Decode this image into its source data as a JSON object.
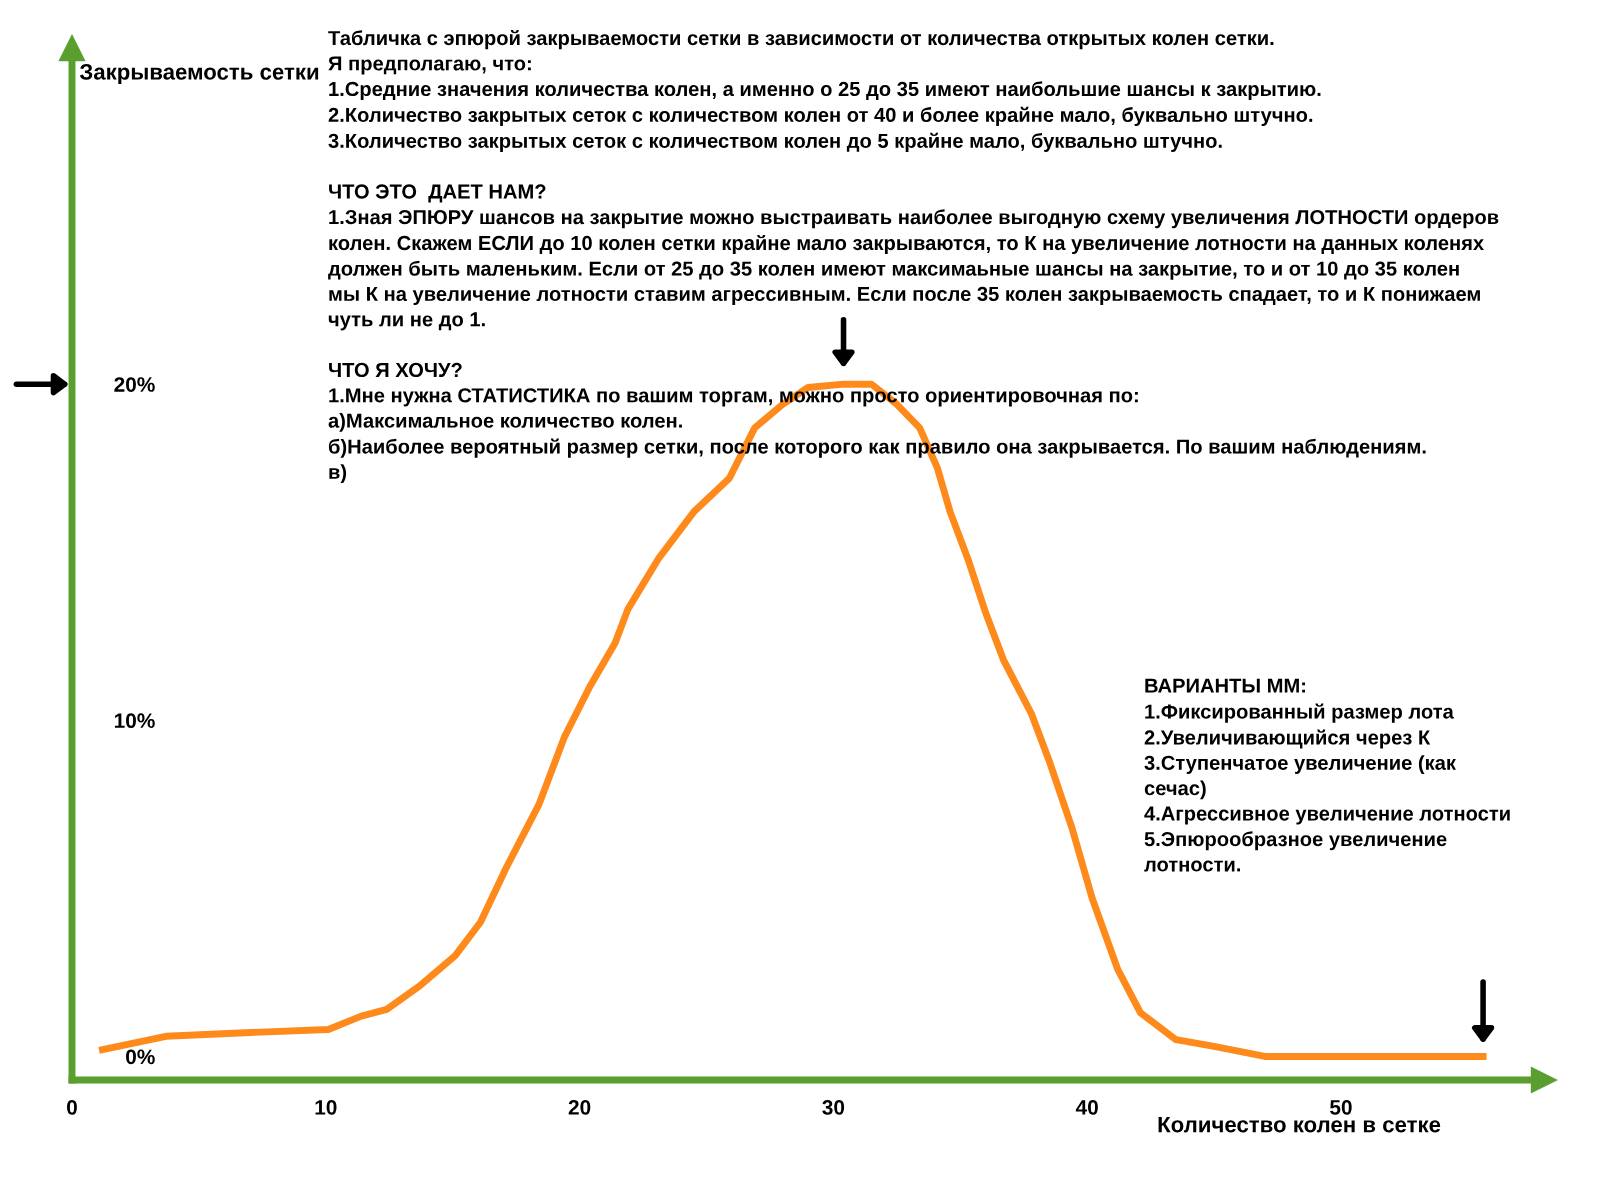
{
  "chart_data": {
    "type": "line",
    "xlabel": "Количество колен в сетке",
    "ylabel": "Закрываемость сетки",
    "x": [
      1.2,
      3.7,
      6.6,
      10.1,
      11.4,
      12.4,
      13.7,
      15.1,
      16.1,
      17.1,
      18.4,
      19.4,
      20.4,
      21.4,
      21.9,
      23.1,
      24.5,
      25.9,
      26.9,
      28.0,
      29.0,
      30.4,
      31.5,
      32.5,
      33.4,
      34.1,
      34.6,
      35.3,
      36.0,
      36.7,
      37.8,
      38.5,
      39.4,
      40.2,
      41.2,
      42.1,
      43.5,
      45.0,
      47.0,
      48.9,
      50.9,
      53.6,
      55.6
    ],
    "series": [
      {
        "color": "#ff8a1c",
        "values": [
          0.2,
          0.6,
          0.7,
          0.8,
          1.2,
          1.4,
          2.1,
          3.0,
          4.0,
          5.6,
          7.5,
          9.5,
          11.0,
          12.3,
          13.3,
          14.8,
          16.2,
          17.2,
          18.7,
          19.4,
          19.9,
          20.0,
          20.0,
          19.4,
          18.7,
          17.5,
          16.2,
          14.8,
          13.2,
          11.8,
          10.2,
          8.8,
          6.8,
          4.7,
          2.6,
          1.3,
          0.5,
          0.3,
          0.0,
          0.0,
          0.0,
          0.0,
          0.0
        ]
      }
    ],
    "xlim": [
      0,
      58
    ],
    "ylim": [
      -0.7,
      30
    ],
    "xticks": [
      0,
      10,
      20,
      30,
      40,
      50
    ],
    "yticks": [
      {
        "value": 0,
        "label": "0%"
      },
      {
        "value": 10,
        "label": "10%"
      },
      {
        "value": 20,
        "label": "20%"
      }
    ],
    "grid": false,
    "legend": false,
    "marker": "none",
    "line_style": "solid",
    "annotations": [
      "Табличка с эпюрой закрываемости сетки в зависимости от количества открытых колен сетки.\nЯ предполагаю, что:\n1.Средние значения количества колен, а именно о 25 до 35 имеют наибольшие шансы к закрытию.\n2.Количество закрытых сеток с количеством колен от 40 и более крайне мало, буквально штучно.\n3.Количество закрытых сеток с количеством колен до 5 крайне мало, буквально штучно.\n\nЧТО ЭТО  ДАЕТ НАМ?\n1.Зная ЭПЮРУ шансов на закрытие можно выстраивать наиболее выгодную схему увеличения ЛОТНОСТИ ордеров\nколен. Скажем ЕСЛИ до 10 колен сетки крайне мало закрываются, то К на увеличение лотности на данных коленях\nдолжен быть маленьким. Если от 25 до 35 колен имеют максимаьные шансы на закрытие, то и от 10 до 35 колен\nмы К на увеличение лотности ставим агрессивным. Если после 35 колен закрываемость спадает, то и К понижаем\nчуть ли не до 1.\n\nЧТО Я ХОЧУ?\n1.Мне нужна СТАТИСТИКА по вашим торгам, можно просто ориентировочная по:\nа)Максимальное количество колен.\nб)Наиболее вероятный размер сетки, после которого как правило она закрывается. По вашим наблюдениям.\nв)",
      "ВАРИАНТЫ ММ:\n1.Фиксированный размер лота\n2.Увеличивающийся через К\n3.Ступенчатое увеличение (как\nсечас)\n4.Агрессивное увеличение лотности\n5.Эпюрообразное увеличение\nлотности."
    ]
  }
}
